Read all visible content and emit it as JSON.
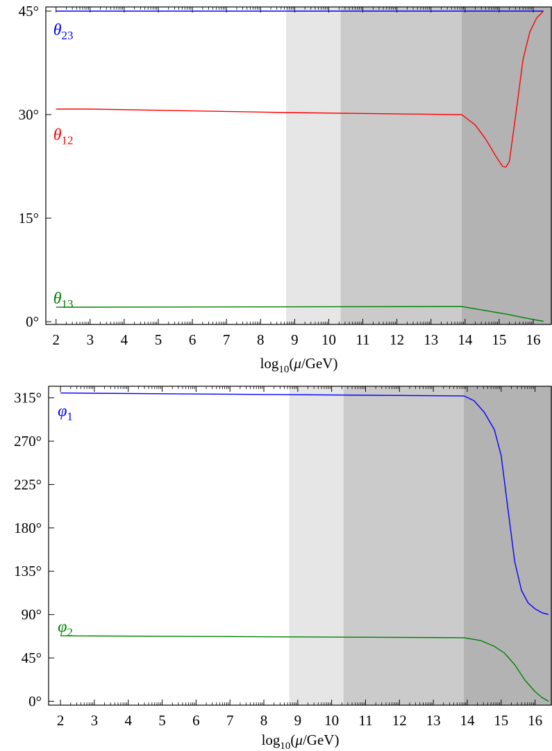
{
  "chart_data": [
    {
      "type": "line",
      "xlabel": "log10(μ/GeV)",
      "xlabel_parts": {
        "pre": "log",
        "sub": "10",
        "mid": "(",
        "mu": "μ",
        "post": "/GeV)"
      },
      "xlim": [
        1.7,
        16.55
      ],
      "ylim": [
        -0.4,
        45.6
      ],
      "xticks": [
        2,
        3,
        4,
        5,
        6,
        7,
        8,
        9,
        10,
        11,
        12,
        13,
        14,
        15,
        16
      ],
      "yticks": [
        {
          "value": 0,
          "label": "0°"
        },
        {
          "value": 15,
          "label": "15°"
        },
        {
          "value": 30,
          "label": "30°"
        },
        {
          "value": 45,
          "label": "45°"
        }
      ],
      "bands": [
        {
          "from": 8.75,
          "to": 10.35,
          "color": "#e6e6e6"
        },
        {
          "from": 10.35,
          "to": 13.9,
          "color": "#cbcbcb"
        },
        {
          "from": 13.9,
          "to": 16.55,
          "color": "#b3b3b3"
        }
      ],
      "series": [
        {
          "name": "θ23",
          "sym": "θ",
          "sub": "23",
          "color": "#0000ff",
          "label_at": [
            2.0,
            41.5
          ],
          "x": [
            2,
            13.9,
            16.3
          ],
          "y": [
            45.0,
            45.0,
            45.0
          ]
        },
        {
          "name": "θ12",
          "sym": "θ",
          "sub": "12",
          "color": "#ff0000",
          "label_at": [
            2.0,
            26.3
          ],
          "x": [
            2,
            3,
            8.75,
            10.35,
            13.9,
            14.3,
            14.6,
            14.9,
            15.1,
            15.2,
            15.3,
            15.5,
            15.7,
            15.9,
            16.1,
            16.3
          ],
          "y": [
            30.8,
            30.8,
            30.3,
            30.2,
            30.0,
            28.5,
            26.5,
            24.0,
            22.5,
            22.4,
            23.2,
            30.5,
            38.0,
            42.0,
            44.0,
            45.0
          ]
        },
        {
          "name": "θ13",
          "sym": "θ",
          "sub": "13",
          "color": "#008000",
          "label_at": [
            2.0,
            2.6
          ],
          "x": [
            2,
            13.9,
            14.6,
            15.2,
            15.8,
            16.3
          ],
          "y": [
            2.1,
            2.2,
            1.6,
            1.1,
            0.5,
            0.05
          ]
        }
      ]
    },
    {
      "type": "line",
      "xlabel": "log10(μ/GeV)",
      "xlabel_parts": {
        "pre": "log",
        "sub": "10",
        "mid": "(",
        "mu": "μ",
        "post": "/GeV)"
      },
      "xlim": [
        1.65,
        16.5
      ],
      "ylim": [
        -4,
        327
      ],
      "xticks": [
        2,
        3,
        4,
        5,
        6,
        7,
        8,
        9,
        10,
        11,
        12,
        13,
        14,
        15,
        16
      ],
      "yticks": [
        {
          "value": 0,
          "label": "0°"
        },
        {
          "value": 45,
          "label": "45°"
        },
        {
          "value": 90,
          "label": "90°"
        },
        {
          "value": 135,
          "label": "135°"
        },
        {
          "value": 180,
          "label": "180°"
        },
        {
          "value": 225,
          "label": "225°"
        },
        {
          "value": 270,
          "label": "270°"
        },
        {
          "value": 315,
          "label": "315°"
        }
      ],
      "bands": [
        {
          "from": 8.75,
          "to": 10.35,
          "color": "#e6e6e6"
        },
        {
          "from": 10.35,
          "to": 13.9,
          "color": "#cbcbcb"
        },
        {
          "from": 13.9,
          "to": 16.5,
          "color": "#b3b3b3"
        }
      ],
      "series": [
        {
          "name": "φ1",
          "sym": "φ",
          "sub": "1",
          "color": "#0000ff",
          "label_at": [
            2.0,
            296
          ],
          "x": [
            2,
            13.9,
            14.2,
            14.5,
            14.8,
            15.0,
            15.2,
            15.4,
            15.6,
            15.8,
            16.0,
            16.2,
            16.4
          ],
          "y": [
            320,
            317,
            312,
            300,
            282,
            255,
            200,
            145,
            115,
            102,
            96,
            92,
            90
          ]
        },
        {
          "name": "φ2",
          "sym": "φ",
          "sub": "2",
          "color": "#008000",
          "label_at": [
            2.0,
            72
          ],
          "x": [
            2,
            13.9,
            14.4,
            14.8,
            15.1,
            15.4,
            15.7,
            16.0,
            16.2,
            16.4
          ],
          "y": [
            68,
            66,
            63,
            57,
            50,
            38,
            22,
            10,
            4,
            0
          ]
        }
      ]
    }
  ]
}
